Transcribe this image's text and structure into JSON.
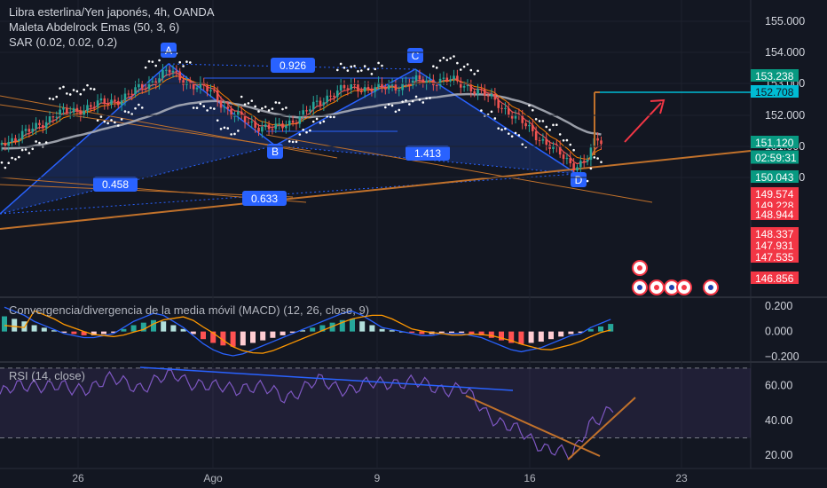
{
  "legend": {
    "symbol": "Libra esterlina/Yen japonés, 4h, OANDA",
    "ema": "Maleta Abdelrock Emas (50, 3, 6)",
    "sar": "SAR (0.02, 0.02, 0.2)"
  },
  "panes": {
    "macd_label": "Convergencia/divergencia de la media móvil (MACD) (12, 26, close, 9)",
    "rsi_label": "RSI (14, close)"
  },
  "colors": {
    "background": "#131722",
    "up": "#26a69a",
    "down": "#ef5350",
    "pattern": "#2962ff",
    "trendline": "#c0712b",
    "rsi": "#7e57c2"
  },
  "chart_data": [
    {
      "type": "candlestick",
      "pane": "price",
      "ylim": [
        146.4,
        155.6
      ],
      "y_ticks": [
        "155.000",
        "154.000",
        "153.000",
        "152.000",
        "151.000",
        "150.000"
      ],
      "x_ticks": [
        "26",
        "Ago",
        "9",
        "16",
        "23"
      ],
      "price_labels": [
        {
          "value": "153.238",
          "color": "#089981"
        },
        {
          "value": "152.708",
          "color": "#00bcd4"
        },
        {
          "value": "151.120",
          "color": "#089981"
        },
        {
          "value": "02:59:31",
          "color": "#089981"
        },
        {
          "value": "150.043",
          "color": "#089981"
        },
        {
          "value": "149.574",
          "color": "#f23645"
        },
        {
          "value": "149.228",
          "color": "#f23645"
        },
        {
          "value": "148.944",
          "color": "#f23645"
        },
        {
          "value": "148.337",
          "color": "#f23645"
        },
        {
          "value": "147.931",
          "color": "#f23645"
        },
        {
          "value": "147.535",
          "color": "#f23645"
        },
        {
          "value": "146.856",
          "color": "#f23645"
        }
      ],
      "pattern_points": [
        {
          "label": "A",
          "value": 153.6
        },
        {
          "label": "B",
          "value": 151.3
        },
        {
          "label": "C",
          "value": 153.6
        },
        {
          "label": "D",
          "value": 150.4
        }
      ],
      "ratios": [
        "0.926",
        "1.413",
        "0.458",
        "0.633"
      ]
    },
    {
      "type": "histogram",
      "pane": "macd",
      "ylim": [
        -0.22,
        0.25
      ],
      "y_ticks": [
        "0.200",
        "0.000",
        "−0.200"
      ],
      "values": [
        0.12,
        0.1,
        0.08,
        0.05,
        0.03,
        0.01,
        -0.01,
        -0.02,
        -0.03,
        -0.03,
        -0.02,
        -0.01,
        0.02,
        0.05,
        0.07,
        0.09,
        0.08,
        0.05,
        0.02,
        -0.02,
        -0.06,
        -0.09,
        -0.11,
        -0.12,
        -0.11,
        -0.09,
        -0.07,
        -0.05,
        -0.03,
        -0.01,
        0.01,
        0.03,
        0.05,
        0.07,
        0.09,
        0.1,
        0.08,
        0.05,
        0.02,
        0.01,
        0.0,
        -0.01,
        -0.02,
        -0.02,
        -0.01,
        -0.01,
        -0.01,
        -0.02,
        -0.03,
        -0.05,
        -0.07,
        -0.09,
        -0.1,
        -0.09,
        -0.08,
        -0.06,
        -0.04,
        -0.02,
        -0.01,
        0.02,
        0.04,
        0.06
      ]
    },
    {
      "type": "line",
      "pane": "rsi",
      "ylim": [
        14,
        72
      ],
      "y_ticks": [
        "60.00",
        "40.00",
        "20.00"
      ],
      "levels": [
        70,
        30
      ]
    }
  ]
}
